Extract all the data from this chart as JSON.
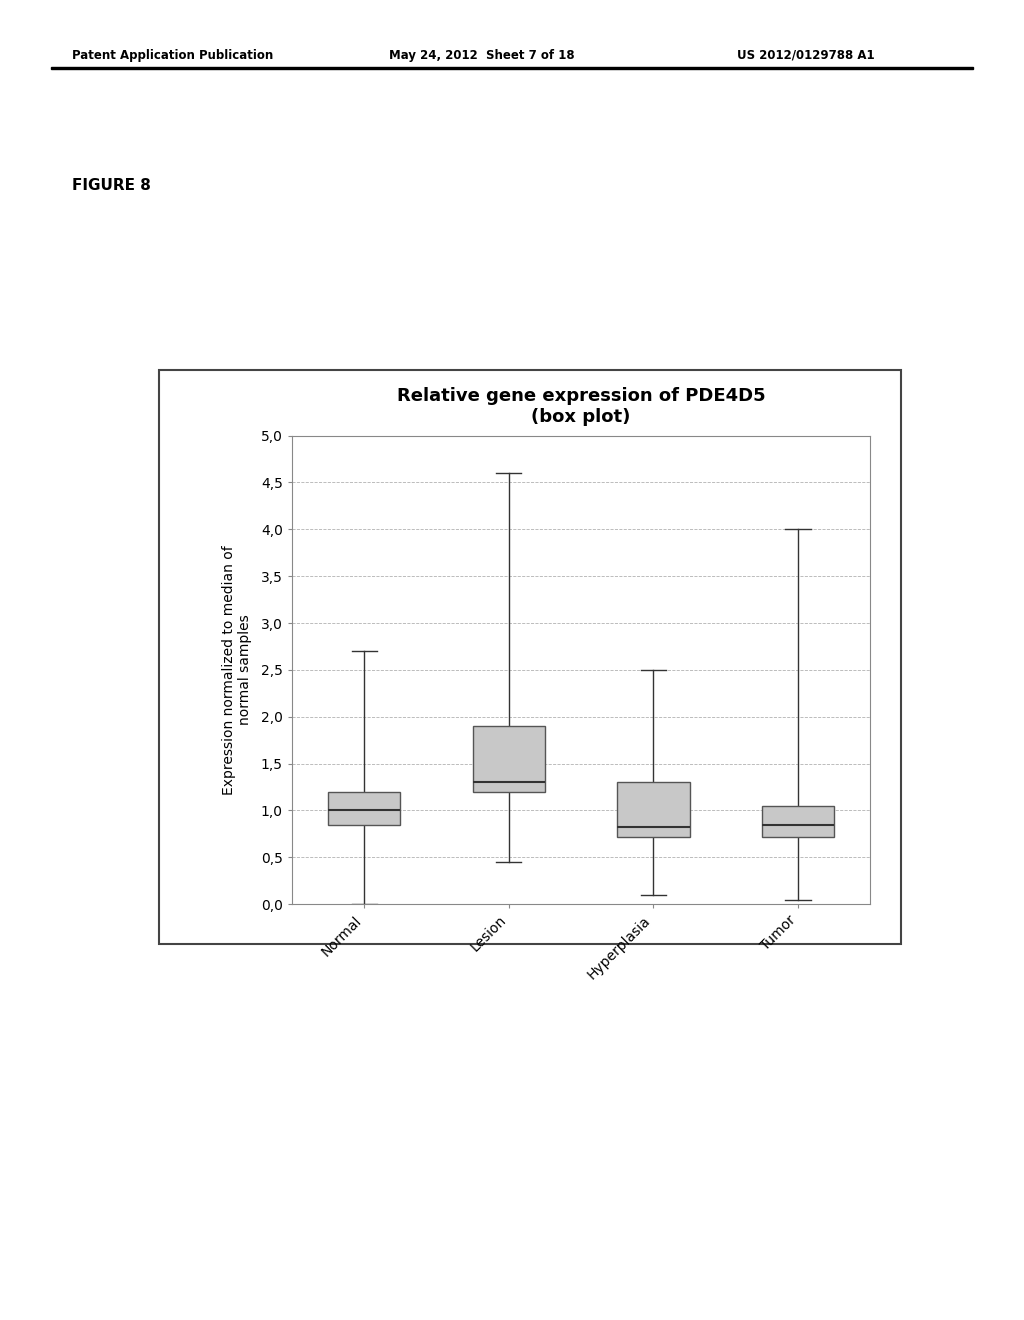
{
  "title_line1": "Relative gene expression of PDE4D5",
  "title_line2": "(box plot)",
  "ylabel": "Expression normalized to median of\nnormal samples",
  "categories": [
    "Normal",
    "Lesion",
    "Hyperplasia",
    "Tumor"
  ],
  "box_data": [
    {
      "whisker_low": 0.0,
      "q1": 0.85,
      "median": 1.0,
      "q3": 1.2,
      "whisker_high": 2.7
    },
    {
      "whisker_low": 0.45,
      "q1": 1.2,
      "median": 1.3,
      "q3": 1.9,
      "whisker_high": 4.6
    },
    {
      "whisker_low": 0.1,
      "q1": 0.72,
      "median": 0.82,
      "q3": 1.3,
      "whisker_high": 2.5
    },
    {
      "whisker_low": 0.05,
      "q1": 0.72,
      "median": 0.85,
      "q3": 1.05,
      "whisker_high": 4.0
    }
  ],
  "ylim": [
    0.0,
    5.0
  ],
  "yticks": [
    0.0,
    0.5,
    1.0,
    1.5,
    2.0,
    2.5,
    3.0,
    3.5,
    4.0,
    4.5,
    5.0
  ],
  "ytick_labels": [
    "0,0",
    "0,5",
    "1,0",
    "1,5",
    "2,0",
    "2,5",
    "3,0",
    "3,5",
    "4,0",
    "4,5",
    "5,0"
  ],
  "box_color": "#c8c8c8",
  "box_edge_color": "#555555",
  "median_color": "#333333",
  "whisker_color": "#333333",
  "background_color": "#ffffff",
  "plot_bg_color": "#ffffff",
  "grid_color": "#aaaaaa",
  "title_fontsize": 13,
  "axis_label_fontsize": 10,
  "tick_fontsize": 10,
  "figure_label": "FIGURE 8",
  "box_width": 0.5,
  "header_left": "Patent Application Publication",
  "header_mid": "May 24, 2012  Sheet 7 of 18",
  "header_right": "US 2012/0129788 A1"
}
